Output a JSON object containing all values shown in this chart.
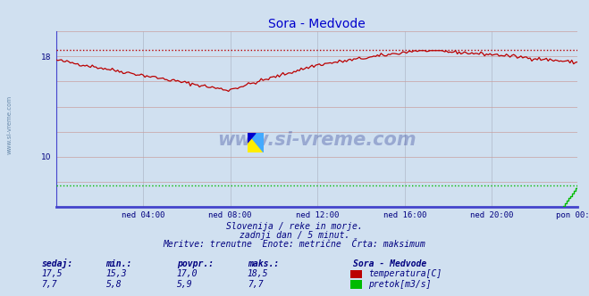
{
  "title": "Sora - Medvode",
  "title_color": "#0000cc",
  "bg_color": "#d0e0f0",
  "plot_bg_color": "#d0e0f0",
  "grid_color_v": "#b0b8c8",
  "grid_color_h": "#c8a0a0",
  "xlabel_ticks": [
    "ned 04:00",
    "ned 08:00",
    "ned 12:00",
    "ned 16:00",
    "ned 20:00",
    "pon 00:00"
  ],
  "ylim": [
    6.0,
    20.0
  ],
  "yticks": [
    10,
    18
  ],
  "temp_color": "#bb0000",
  "flow_color": "#00bb00",
  "temp_max_line": 18.5,
  "flow_max_line": 7.7,
  "watermark": "www.si-vreme.com",
  "subtitle1": "Slovenija / reke in morje.",
  "subtitle2": "zadnji dan / 5 minut.",
  "subtitle3": "Meritve: trenutne  Enote: metrične  Črta: maksimum",
  "legend_title": "Sora - Medvode",
  "legend_entries": [
    "temperatura[C]",
    "pretok[m3/s]"
  ],
  "table_headers": [
    "sedaj:",
    "min.:",
    "povpr.:",
    "maks.:"
  ],
  "table_temp": [
    "17,5",
    "15,3",
    "17,0",
    "18,5"
  ],
  "table_flow": [
    "7,7",
    "5,8",
    "5,9",
    "7,7"
  ],
  "label_color": "#000080",
  "sidebar_text": "www.si-vreme.com",
  "sidebar_color": "#6688aa",
  "spine_color": "#4444cc",
  "n_points": 288
}
